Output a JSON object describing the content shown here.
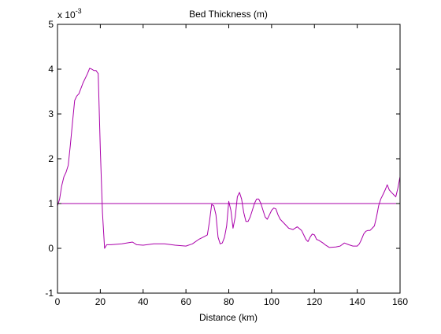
{
  "chart_data": {
    "type": "line",
    "title": "Bed Thickness (m)",
    "xlabel": "Distance (km)",
    "ylabel": "",
    "y_multiplier_base": "x 10",
    "y_multiplier_exponent": "-3",
    "xlim": [
      0,
      160
    ],
    "ylim": [
      -1,
      5
    ],
    "x_ticks": [
      0,
      20,
      40,
      60,
      80,
      100,
      120,
      140,
      160
    ],
    "y_ticks": [
      -1,
      0,
      1,
      2,
      3,
      4,
      5
    ],
    "grid": false,
    "colors": {
      "series": "#aa00aa",
      "axes": "#000000",
      "background": "#ffffff"
    },
    "series": [
      {
        "values_unit": "x 10^-3 m",
        "x": [
          0,
          1,
          2,
          3,
          4,
          5,
          6,
          7,
          8,
          9,
          10,
          12,
          14,
          15,
          16,
          17,
          18,
          19,
          20,
          21,
          22,
          23,
          25,
          30,
          35,
          37,
          40,
          45,
          50,
          55,
          60,
          63,
          66,
          68,
          70,
          71,
          72,
          73,
          74,
          75,
          76,
          77,
          78,
          79,
          80,
          81,
          82,
          83,
          84,
          85,
          86,
          87,
          88,
          89,
          90,
          91,
          92,
          93,
          94,
          95,
          96,
          97,
          98,
          99,
          100,
          101,
          102,
          103,
          104,
          106,
          108,
          110,
          112,
          114,
          115,
          116,
          117,
          118,
          119,
          120,
          121,
          122,
          123,
          124,
          125,
          127,
          130,
          132,
          134,
          136,
          138,
          140,
          141,
          142,
          143,
          144,
          145,
          146,
          147,
          148,
          149,
          150,
          151,
          152,
          153,
          154,
          155,
          156,
          157,
          158,
          159,
          160
        ],
        "y": [
          0.95,
          1.1,
          1.4,
          1.6,
          1.7,
          1.85,
          2.3,
          2.8,
          3.3,
          3.4,
          3.45,
          3.7,
          3.9,
          4.02,
          4.0,
          3.97,
          3.97,
          3.9,
          2.2,
          0.8,
          0.0,
          0.08,
          0.08,
          0.1,
          0.14,
          0.08,
          0.07,
          0.1,
          0.1,
          0.07,
          0.05,
          0.1,
          0.2,
          0.25,
          0.3,
          0.6,
          0.98,
          0.95,
          0.75,
          0.25,
          0.1,
          0.12,
          0.25,
          0.5,
          1.05,
          0.85,
          0.45,
          0.7,
          1.15,
          1.25,
          1.1,
          0.8,
          0.6,
          0.6,
          0.7,
          0.85,
          1.0,
          1.1,
          1.1,
          1.0,
          0.85,
          0.7,
          0.65,
          0.75,
          0.85,
          0.9,
          0.88,
          0.75,
          0.65,
          0.55,
          0.45,
          0.42,
          0.48,
          0.4,
          0.3,
          0.2,
          0.15,
          0.25,
          0.32,
          0.3,
          0.2,
          0.18,
          0.15,
          0.12,
          0.08,
          0.02,
          0.03,
          0.05,
          0.12,
          0.08,
          0.05,
          0.05,
          0.1,
          0.2,
          0.32,
          0.38,
          0.4,
          0.4,
          0.45,
          0.5,
          0.7,
          0.95,
          1.1,
          1.2,
          1.3,
          1.42,
          1.3,
          1.25,
          1.2,
          1.15,
          1.35,
          1.6
        ]
      },
      {
        "values_unit": "x 10^-3 m",
        "x": [
          0,
          160
        ],
        "y": [
          1.0,
          1.0
        ]
      }
    ]
  }
}
